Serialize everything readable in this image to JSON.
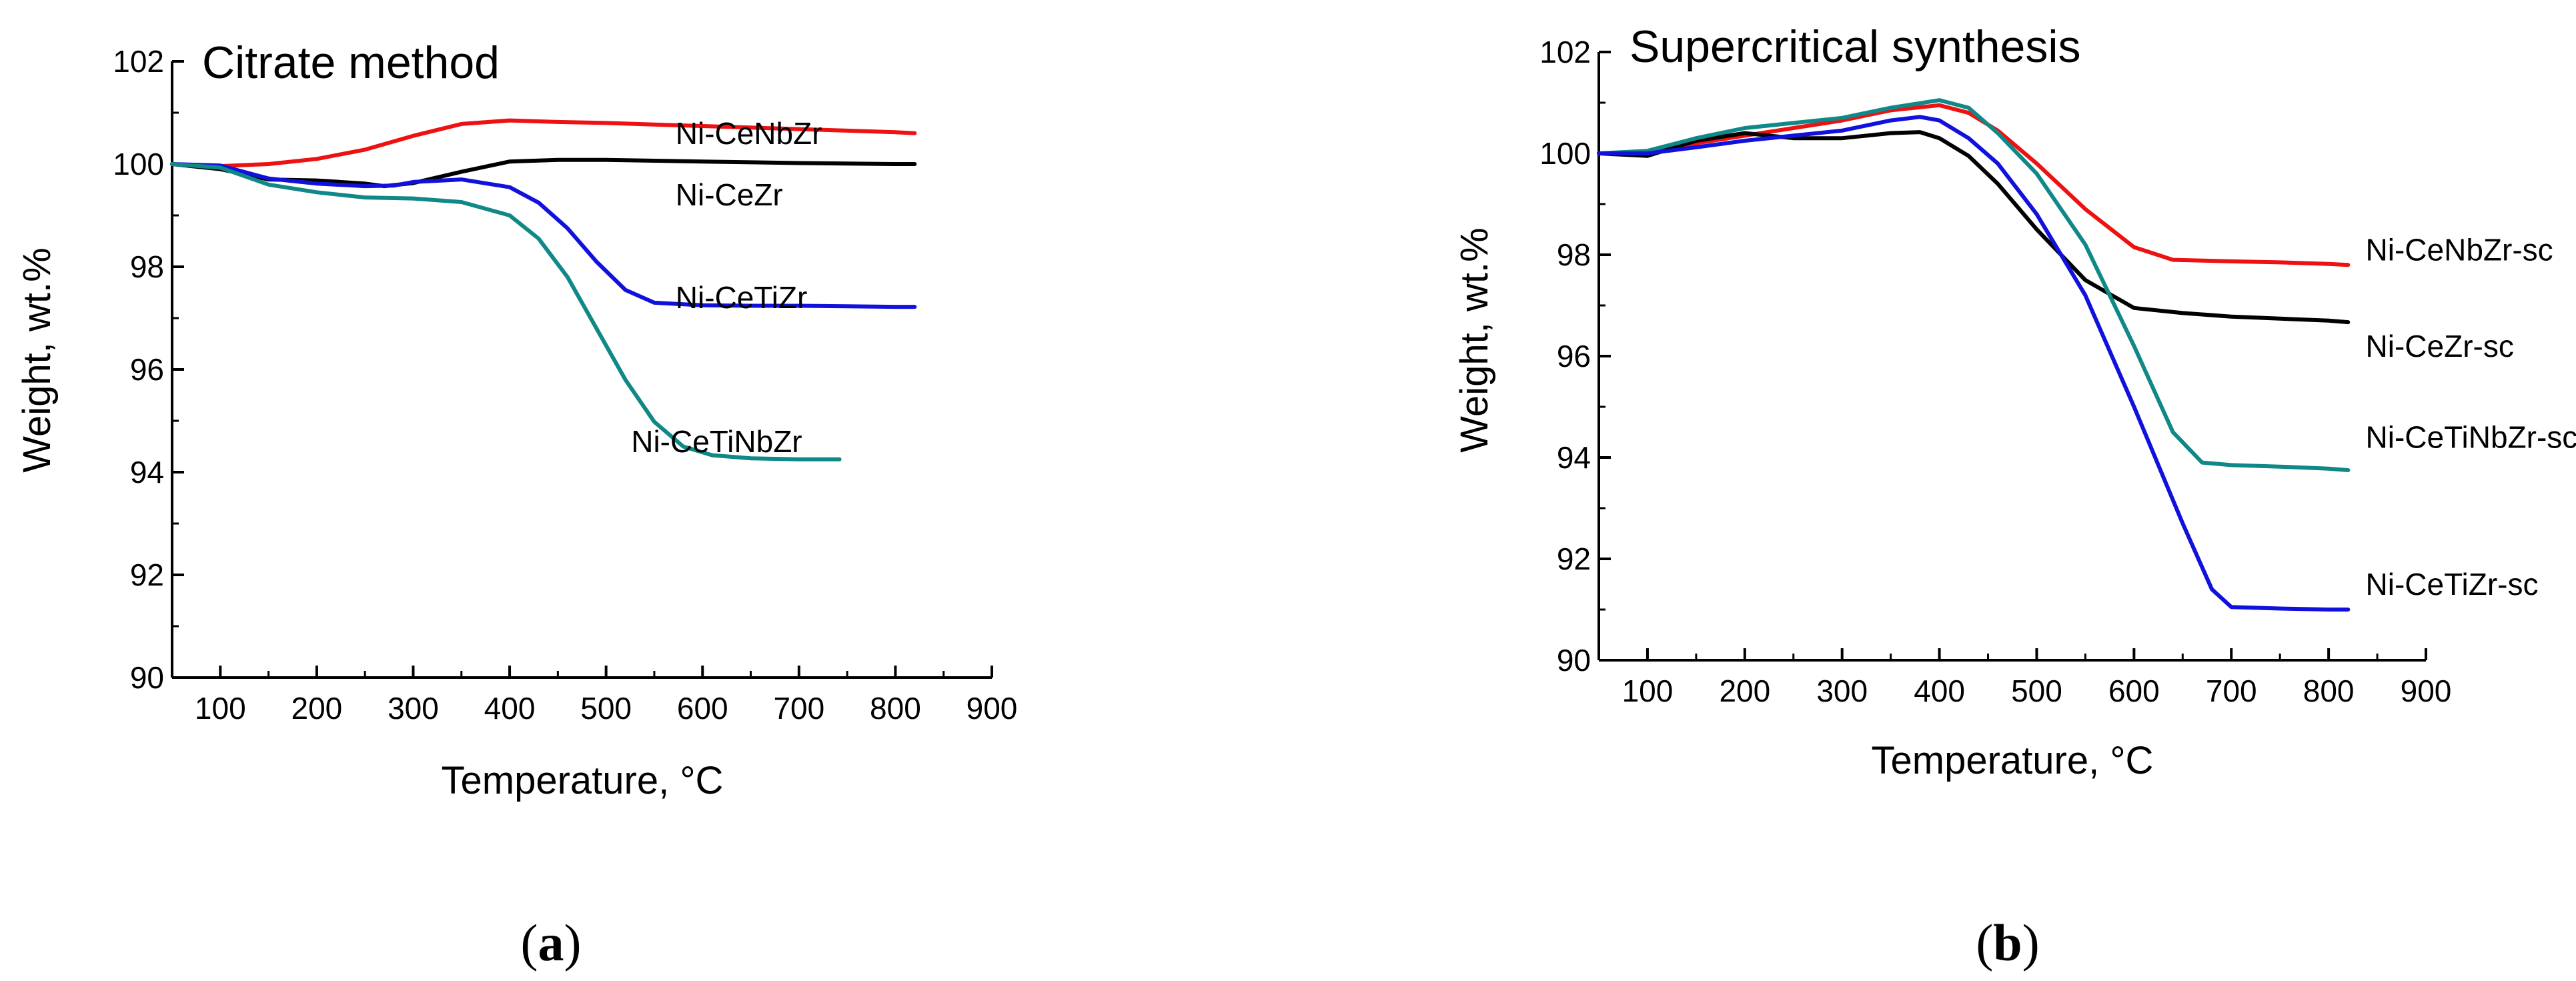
{
  "chart_data": [
    {
      "panel": "(a)",
      "panel_label": "a",
      "type": "line",
      "title": "Citrate method",
      "xlabel": "Temperature, °C",
      "ylabel": "Weight, wt.%",
      "xlim": [
        50,
        900
      ],
      "ylim": [
        90,
        102
      ],
      "xticks": [
        100,
        200,
        300,
        400,
        500,
        600,
        700,
        800,
        900
      ],
      "yticks": [
        90,
        92,
        94,
        96,
        98,
        100,
        102
      ],
      "series": [
        {
          "name": "Ni-CeNbZr",
          "color": "#ee1111",
          "label_at": [
            572,
            100.6
          ],
          "x": [
            50,
            100,
            150,
            200,
            250,
            300,
            350,
            400,
            450,
            500,
            550,
            600,
            650,
            700,
            750,
            800,
            820
          ],
          "y": [
            100.0,
            99.96,
            100.0,
            100.1,
            100.28,
            100.55,
            100.78,
            100.85,
            100.82,
            100.8,
            100.77,
            100.74,
            100.71,
            100.68,
            100.65,
            100.62,
            100.6
          ]
        },
        {
          "name": "Ni-CeZr",
          "color": "#000000",
          "label_at": [
            572,
            99.4
          ],
          "x": [
            50,
            100,
            150,
            200,
            250,
            270,
            300,
            350,
            400,
            450,
            500,
            600,
            700,
            800,
            820
          ],
          "y": [
            100.0,
            99.9,
            99.7,
            99.68,
            99.62,
            99.57,
            99.63,
            99.85,
            100.05,
            100.08,
            100.08,
            100.05,
            100.02,
            100.0,
            100.0
          ]
        },
        {
          "name": "Ni-CeTiZr",
          "color": "#1111dd",
          "label_at": [
            572,
            97.4
          ],
          "x": [
            50,
            100,
            150,
            200,
            250,
            280,
            300,
            350,
            400,
            430,
            460,
            490,
            520,
            550,
            600,
            650,
            700,
            750,
            800,
            820
          ],
          "y": [
            100.0,
            99.97,
            99.72,
            99.62,
            99.57,
            99.58,
            99.65,
            99.7,
            99.55,
            99.25,
            98.75,
            98.1,
            97.55,
            97.3,
            97.25,
            97.24,
            97.24,
            97.23,
            97.22,
            97.22
          ]
        },
        {
          "name": "Ni-CeTiNbZr",
          "color": "#118888",
          "label_at": [
            526,
            94.6
          ],
          "x": [
            50,
            100,
            150,
            200,
            250,
            300,
            350,
            400,
            430,
            460,
            490,
            520,
            550,
            580,
            610,
            650,
            700,
            742
          ],
          "y": [
            100.0,
            99.93,
            99.6,
            99.45,
            99.35,
            99.33,
            99.26,
            99.0,
            98.55,
            97.8,
            96.8,
            95.8,
            94.98,
            94.5,
            94.33,
            94.27,
            94.25,
            94.25
          ]
        }
      ]
    },
    {
      "panel": "(b)",
      "panel_label": "b",
      "type": "line",
      "title": "Supercritical synthesis",
      "xlabel": "Temperature, °C",
      "ylabel": "Weight, wt.%",
      "xlim": [
        50,
        900
      ],
      "ylim": [
        90,
        102
      ],
      "xticks": [
        100,
        200,
        300,
        400,
        500,
        600,
        700,
        800,
        900
      ],
      "yticks": [
        90,
        92,
        94,
        96,
        98,
        100,
        102
      ],
      "series": [
        {
          "name": "Ni-CeNbZr-sc",
          "color": "#ee1111",
          "label_at": [
            838,
            98.1
          ],
          "x": [
            50,
            100,
            150,
            200,
            250,
            300,
            350,
            400,
            430,
            460,
            500,
            550,
            600,
            640,
            700,
            750,
            800,
            820
          ],
          "y": [
            100.0,
            100.0,
            100.2,
            100.35,
            100.5,
            100.65,
            100.85,
            100.95,
            100.8,
            100.45,
            99.8,
            98.9,
            98.15,
            97.9,
            97.87,
            97.85,
            97.82,
            97.8
          ]
        },
        {
          "name": "Ni-CeZr-sc",
          "color": "#000000",
          "label_at": [
            838,
            96.2
          ],
          "x": [
            50,
            100,
            150,
            200,
            250,
            300,
            350,
            380,
            400,
            430,
            460,
            500,
            550,
            600,
            650,
            700,
            750,
            800,
            820
          ],
          "y": [
            100.0,
            99.95,
            100.25,
            100.4,
            100.3,
            100.3,
            100.4,
            100.42,
            100.3,
            99.95,
            99.4,
            98.5,
            97.5,
            96.95,
            96.85,
            96.78,
            96.74,
            96.7,
            96.67
          ]
        },
        {
          "name": "Ni-CeTiNbZr-sc",
          "color": "#118888",
          "label_at": [
            838,
            94.4
          ],
          "x": [
            50,
            100,
            150,
            200,
            250,
            300,
            350,
            400,
            430,
            460,
            500,
            550,
            600,
            640,
            670,
            700,
            750,
            800,
            820
          ],
          "y": [
            100.0,
            100.05,
            100.3,
            100.5,
            100.6,
            100.7,
            100.9,
            101.05,
            100.9,
            100.4,
            99.6,
            98.2,
            96.2,
            94.5,
            93.9,
            93.85,
            93.82,
            93.78,
            93.75
          ]
        },
        {
          "name": "Ni-CeTiZr-sc",
          "color": "#1111dd",
          "label_at": [
            838,
            91.5
          ],
          "x": [
            50,
            100,
            150,
            200,
            250,
            300,
            350,
            380,
            400,
            430,
            460,
            500,
            550,
            600,
            650,
            680,
            700,
            750,
            800,
            820
          ],
          "y": [
            100.0,
            100.0,
            100.12,
            100.25,
            100.35,
            100.45,
            100.65,
            100.72,
            100.65,
            100.3,
            99.8,
            98.8,
            97.2,
            95.0,
            92.7,
            91.4,
            91.05,
            91.02,
            91.0,
            91.0
          ]
        }
      ]
    }
  ]
}
